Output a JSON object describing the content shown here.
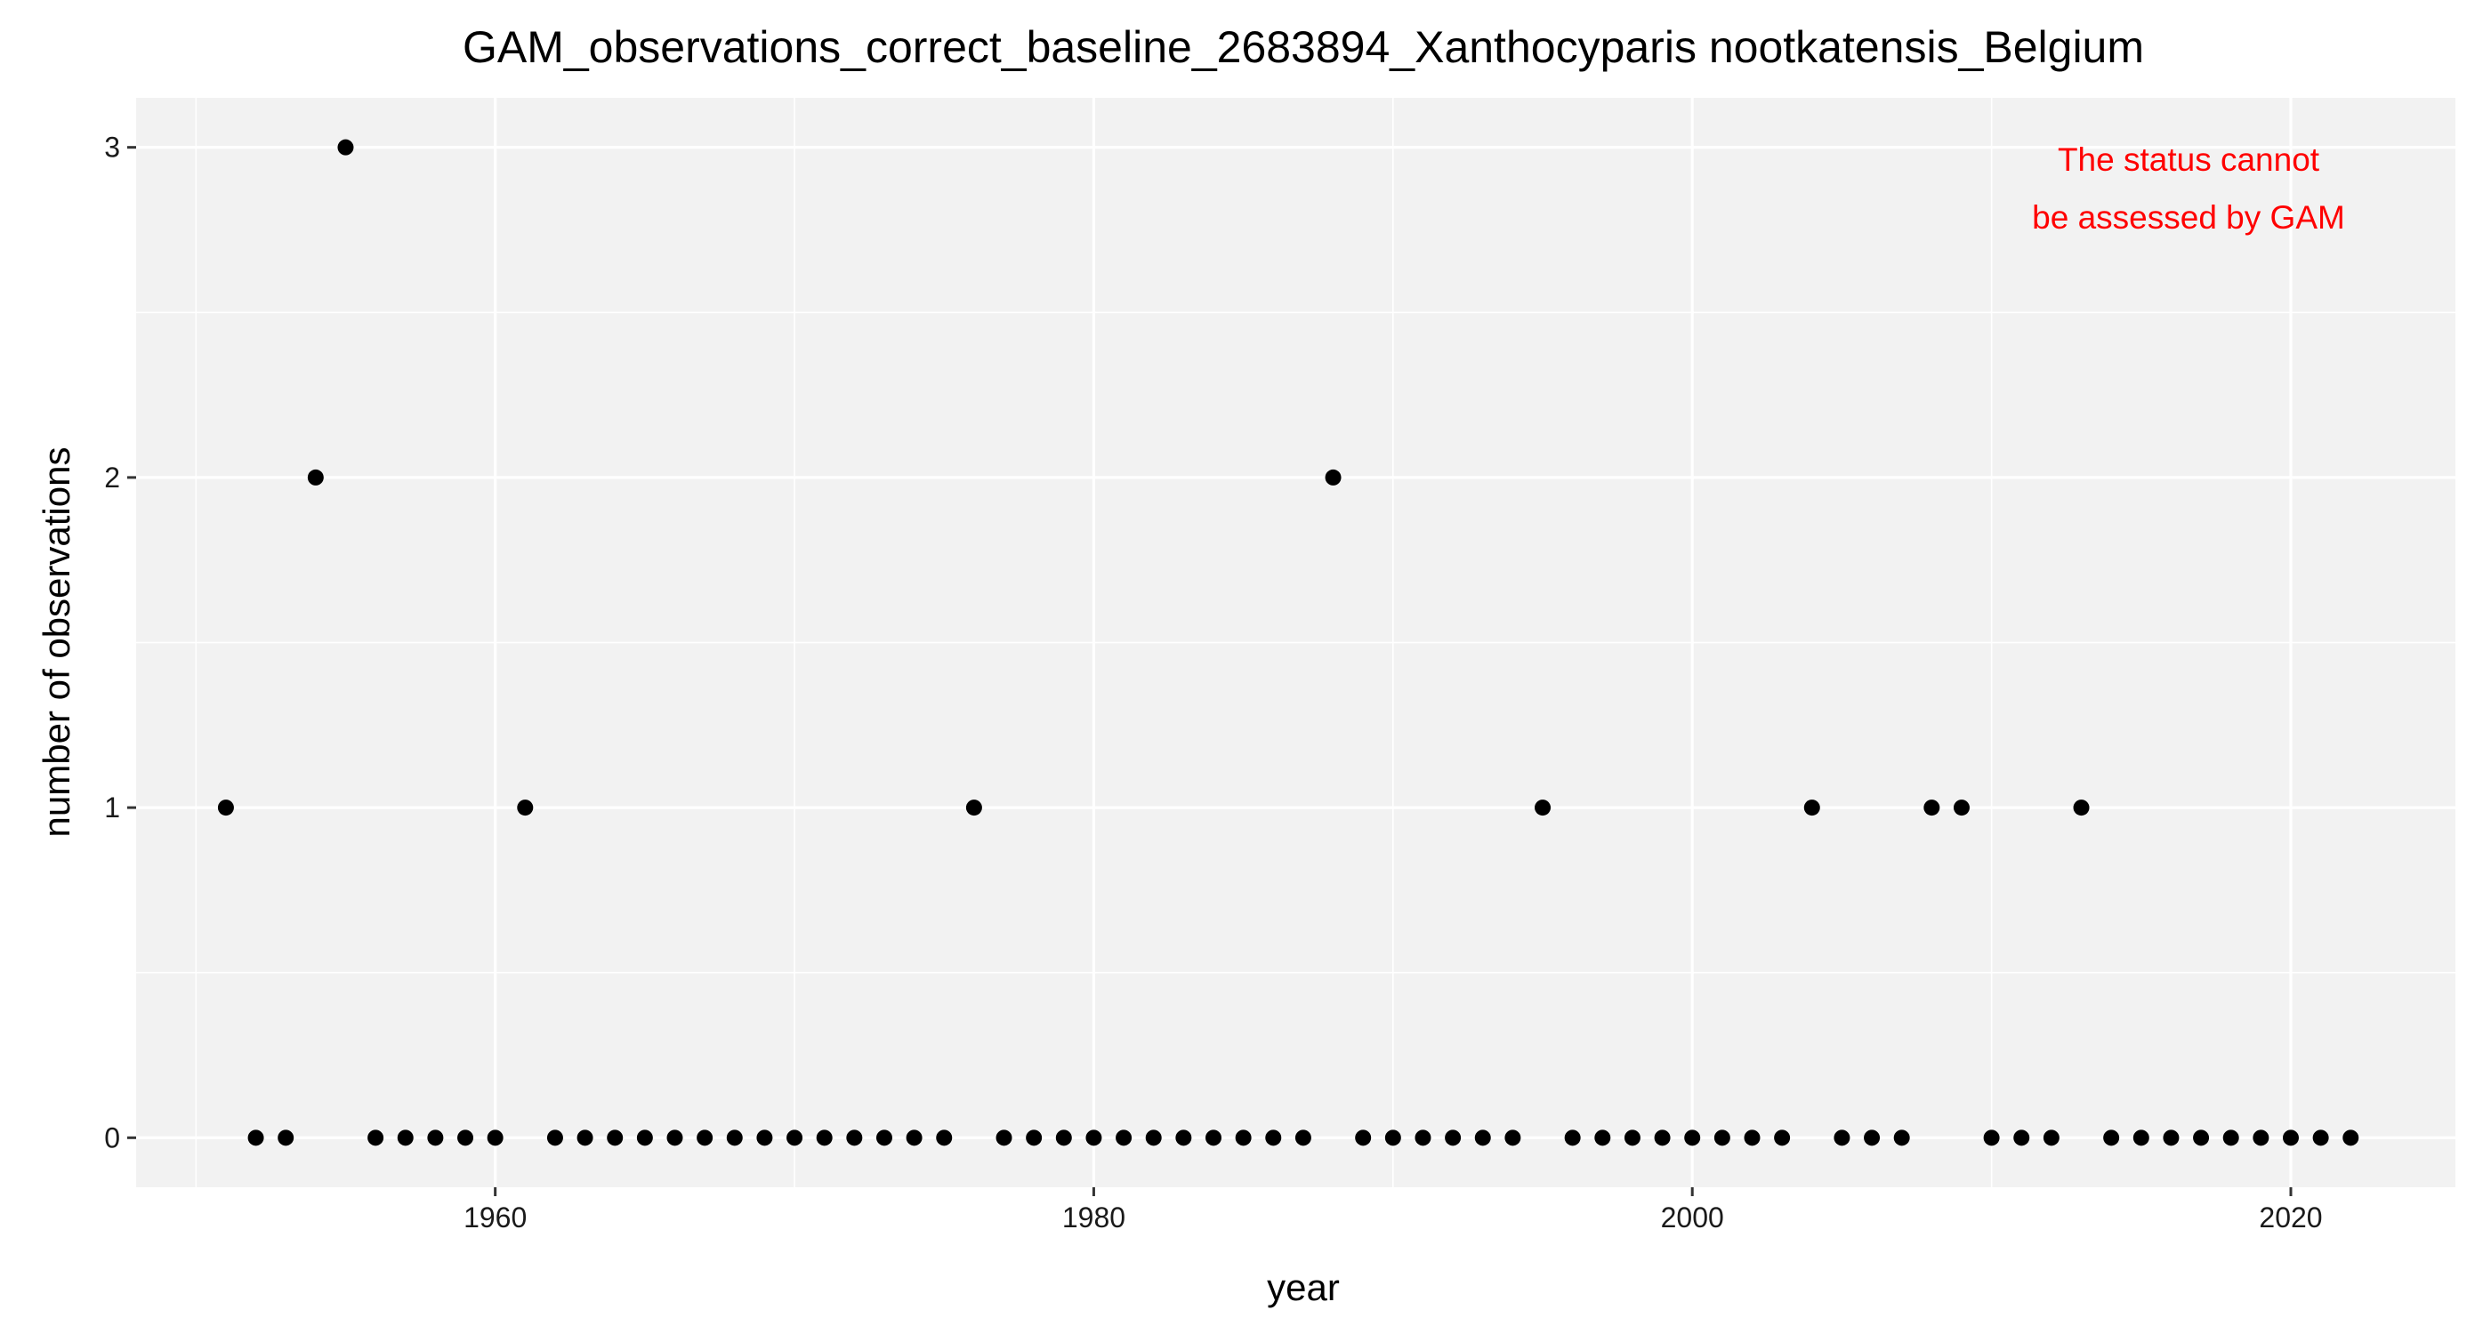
{
  "chart_data": {
    "type": "scatter",
    "title": "GAM_observations_correct_baseline_2683894_Xanthocyparis nootkatensis_Belgium",
    "xlabel": "year",
    "ylabel": "number of observations",
    "xlim": [
      1948,
      2025.5
    ],
    "ylim": [
      -0.15,
      3.15
    ],
    "x_ticks": [
      1960,
      1980,
      2000,
      2020
    ],
    "y_ticks": [
      0,
      1,
      2,
      3
    ],
    "grid": true,
    "panel_color": "#f2f2f2",
    "grid_color": "#ffffff",
    "point_color": "#000000",
    "annotation": {
      "lines": [
        "The status cannot",
        "be assessed by GAM"
      ],
      "color": "#ff0000"
    },
    "x": [
      1951,
      1952,
      1953,
      1954,
      1955,
      1956,
      1957,
      1958,
      1959,
      1960,
      1961,
      1962,
      1963,
      1964,
      1965,
      1966,
      1967,
      1968,
      1969,
      1970,
      1971,
      1972,
      1973,
      1974,
      1975,
      1976,
      1977,
      1978,
      1979,
      1980,
      1981,
      1982,
      1983,
      1984,
      1985,
      1986,
      1987,
      1988,
      1989,
      1990,
      1991,
      1992,
      1993,
      1994,
      1995,
      1996,
      1997,
      1998,
      1999,
      2000,
      2001,
      2002,
      2003,
      2004,
      2005,
      2006,
      2007,
      2008,
      2009,
      2010,
      2011,
      2012,
      2013,
      2014,
      2015,
      2016,
      2017,
      2018,
      2019,
      2020,
      2021,
      2022
    ],
    "y": [
      1,
      0,
      0,
      2,
      3,
      0,
      0,
      0,
      0,
      0,
      1,
      0,
      0,
      0,
      0,
      0,
      0,
      0,
      0,
      0,
      0,
      0,
      0,
      0,
      0,
      1,
      0,
      0,
      0,
      0,
      0,
      0,
      0,
      0,
      0,
      0,
      0,
      2,
      0,
      0,
      0,
      0,
      0,
      0,
      1,
      0,
      0,
      0,
      0,
      0,
      0,
      0,
      0,
      1,
      0,
      0,
      0,
      1,
      1,
      0,
      0,
      0,
      1,
      0,
      0,
      0,
      0,
      0,
      0,
      0,
      0,
      0
    ]
  }
}
